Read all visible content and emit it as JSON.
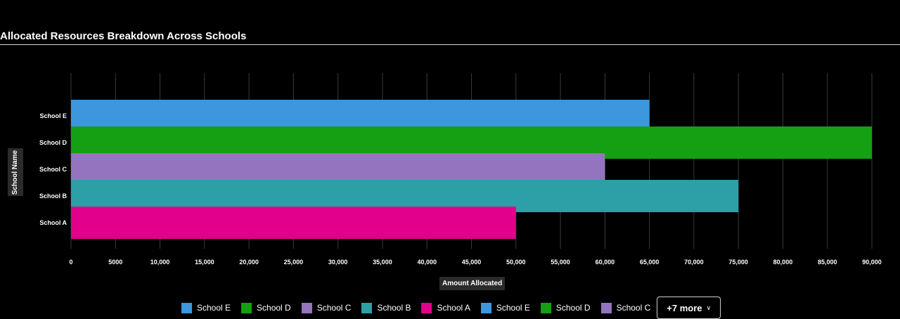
{
  "chart_data": {
    "type": "bar",
    "orientation": "horizontal",
    "title": "Allocated Resources Breakdown Across Schools",
    "xlabel": "Amount Allocated",
    "ylabel": "School Name",
    "categories": [
      "School E",
      "School D",
      "School C",
      "School B",
      "School A"
    ],
    "values": [
      65000,
      90000,
      60000,
      75000,
      50000
    ],
    "colors": [
      "#3c97dc",
      "#159f12",
      "#9474be",
      "#2ca0a6",
      "#e2008a"
    ],
    "xlim": [
      0,
      90000
    ],
    "xticks": [
      "0",
      "5000",
      "10,000",
      "15,000",
      "20,000",
      "25,000",
      "30,000",
      "35,000",
      "40,000",
      "45,000",
      "50,000",
      "55,000",
      "60,000",
      "65,000",
      "70,000",
      "75,000",
      "80,000",
      "85,000",
      "90,000"
    ],
    "grid": true,
    "legend": {
      "position": "bottom",
      "items": [
        {
          "label": "School E",
          "color": "#3c97dc"
        },
        {
          "label": "School D",
          "color": "#159f12"
        },
        {
          "label": "School C",
          "color": "#9474be"
        },
        {
          "label": "School B",
          "color": "#2ca0a6"
        },
        {
          "label": "School A",
          "color": "#e2008a"
        },
        {
          "label": "School E",
          "color": "#3c97dc"
        },
        {
          "label": "School D",
          "color": "#159f12"
        },
        {
          "label": "School C",
          "color": "#9474be"
        }
      ],
      "more_label": "+7 more",
      "more_icon": "chevron-down-icon"
    }
  }
}
